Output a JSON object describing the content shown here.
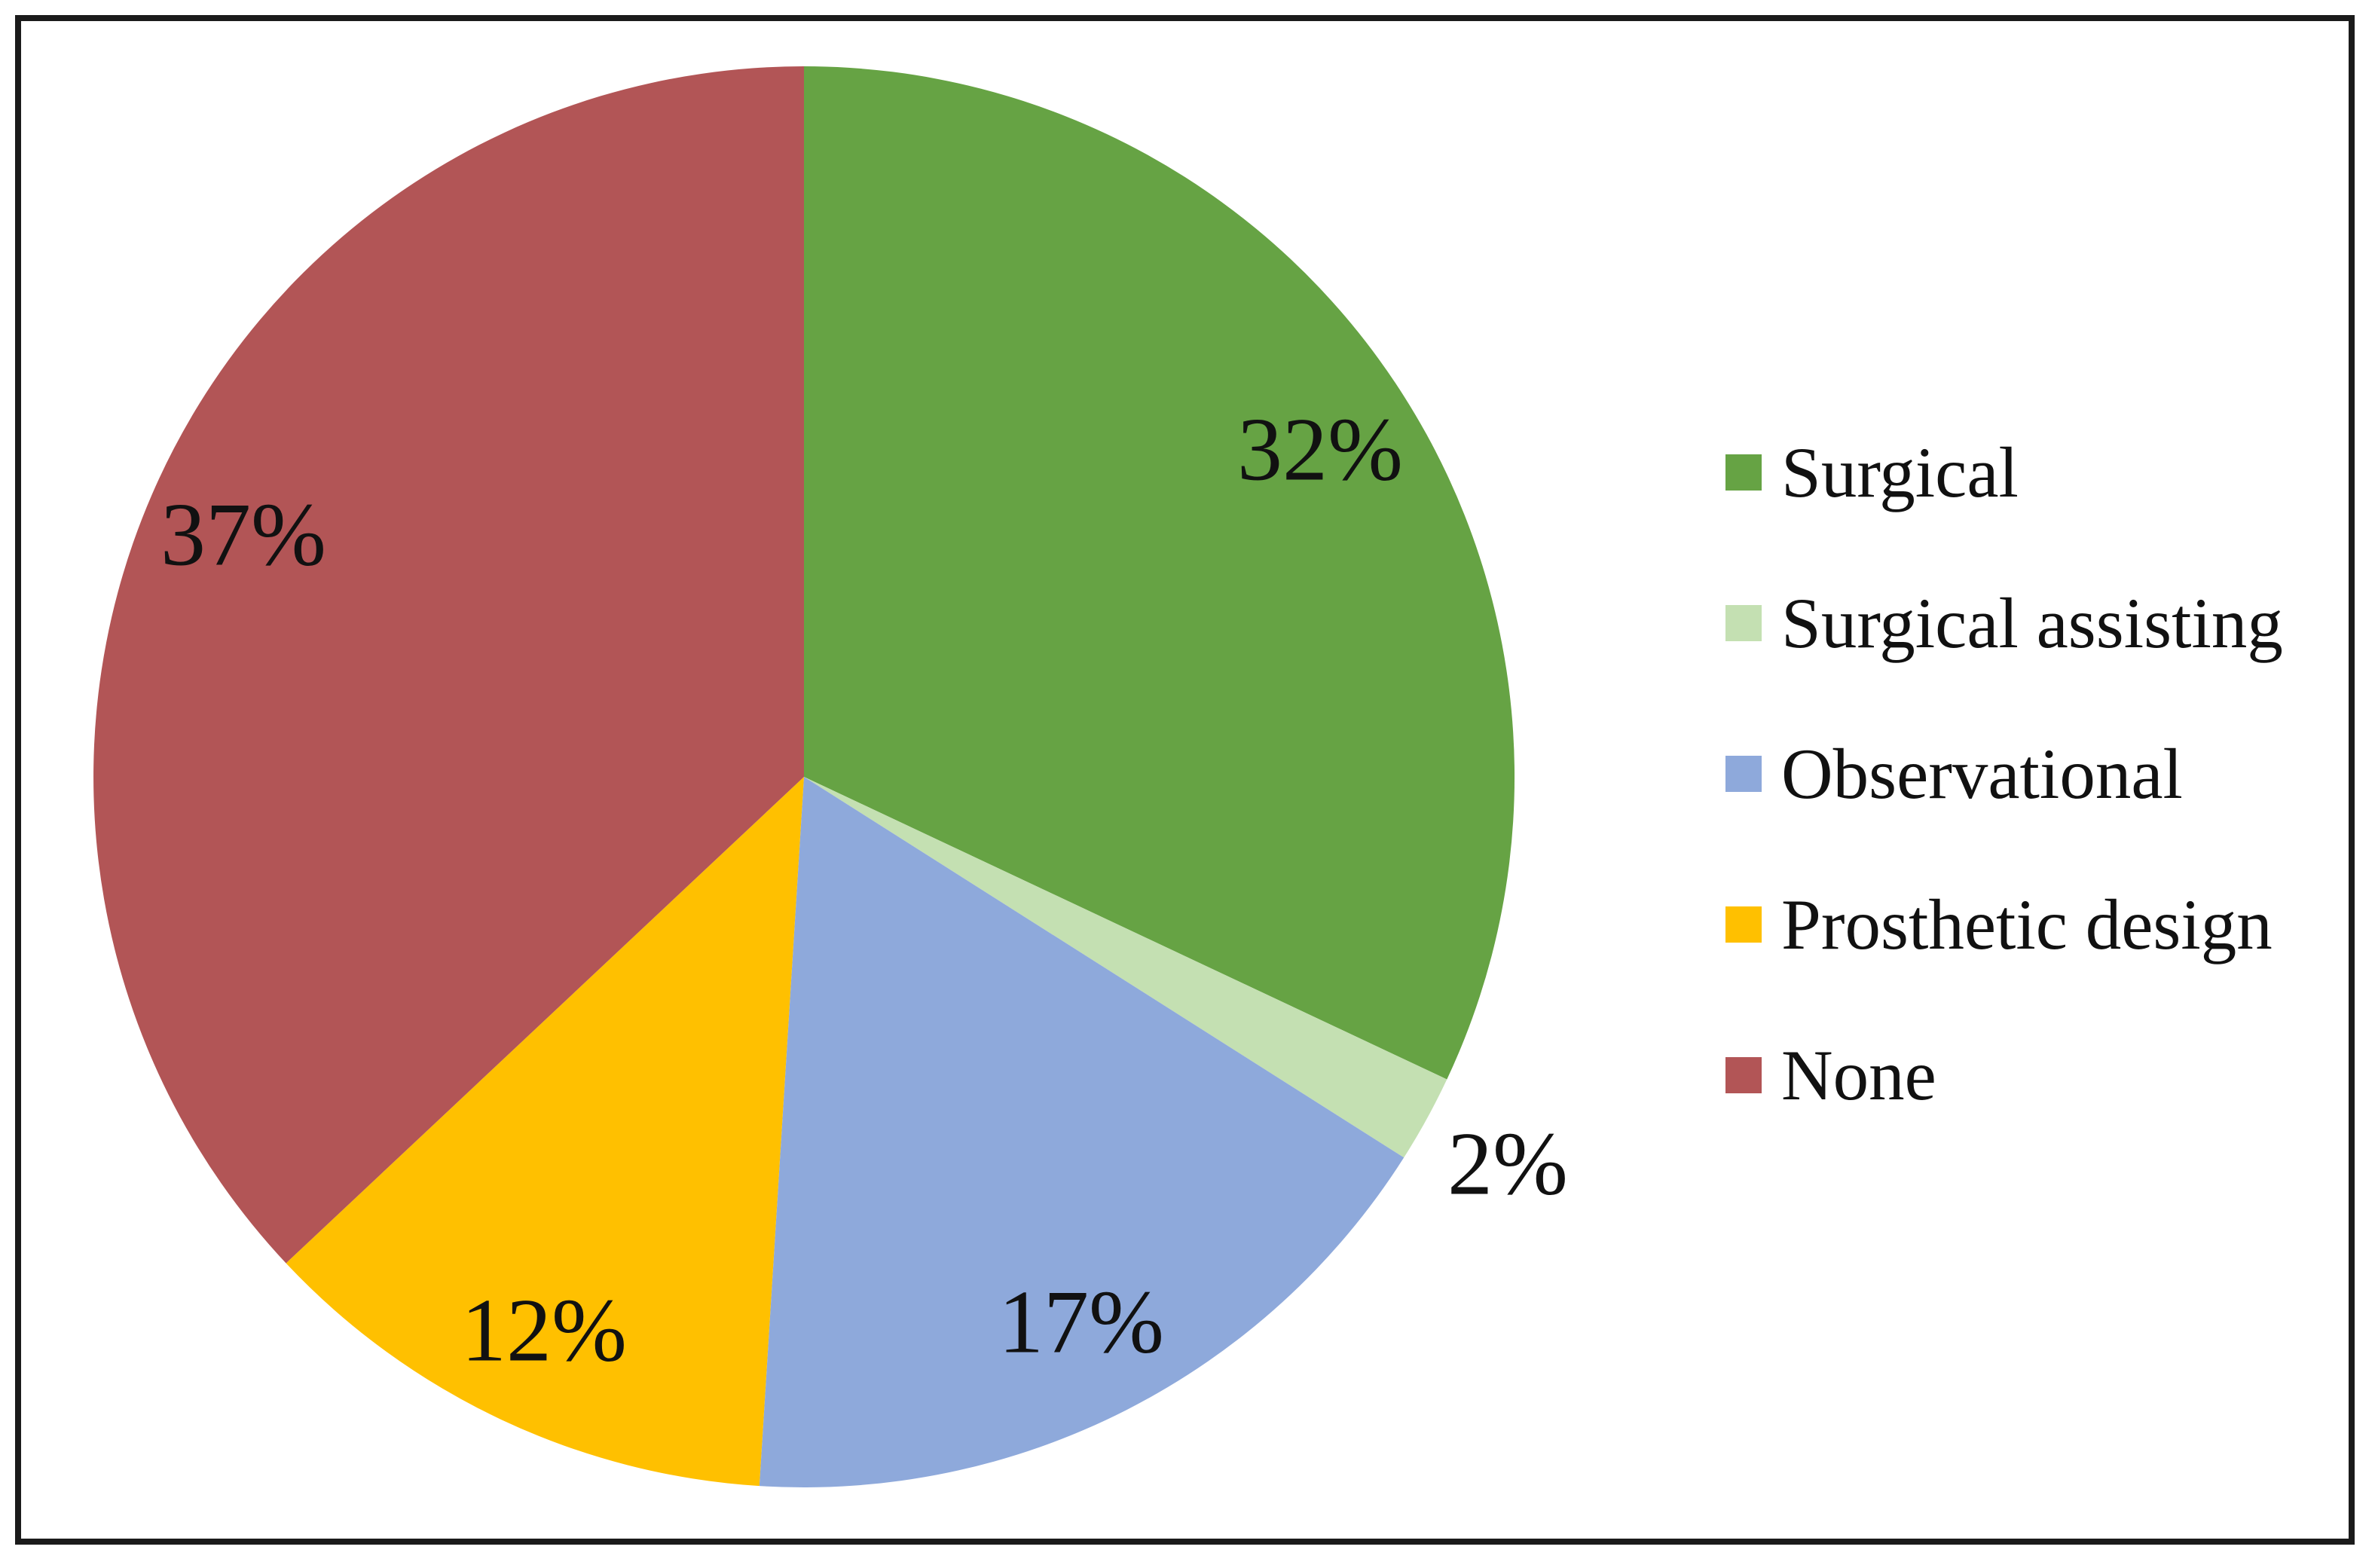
{
  "figure": {
    "background_color": "#ffffff",
    "frame_color": "#1b1b1b",
    "text_color": "#111111"
  },
  "chart_data": {
    "type": "pie",
    "title": "",
    "categories": [
      "Surgical",
      "Surgical assisting",
      "Observational",
      "Prosthetic design",
      "None"
    ],
    "values": [
      32,
      2,
      17,
      12,
      37
    ],
    "slices": [
      {
        "label": "Surgical",
        "value": 32,
        "display": "32%",
        "color": "#66A344"
      },
      {
        "label": "Surgical assisting",
        "value": 2,
        "display": "2%",
        "color": "#C4E0B2"
      },
      {
        "label": "Observational",
        "value": 17,
        "display": "17%",
        "color": "#8EA9DB"
      },
      {
        "label": "Prosthetic design",
        "value": 12,
        "display": "12%",
        "color": "#FFC000"
      },
      {
        "label": "None",
        "value": 37,
        "display": "37%",
        "color": "#B25556"
      }
    ],
    "start_angle_deg": 0,
    "direction": "clockwise",
    "data_label_format": "percent",
    "data_label_color": "#111111",
    "legend_position": "right",
    "grid": false
  }
}
